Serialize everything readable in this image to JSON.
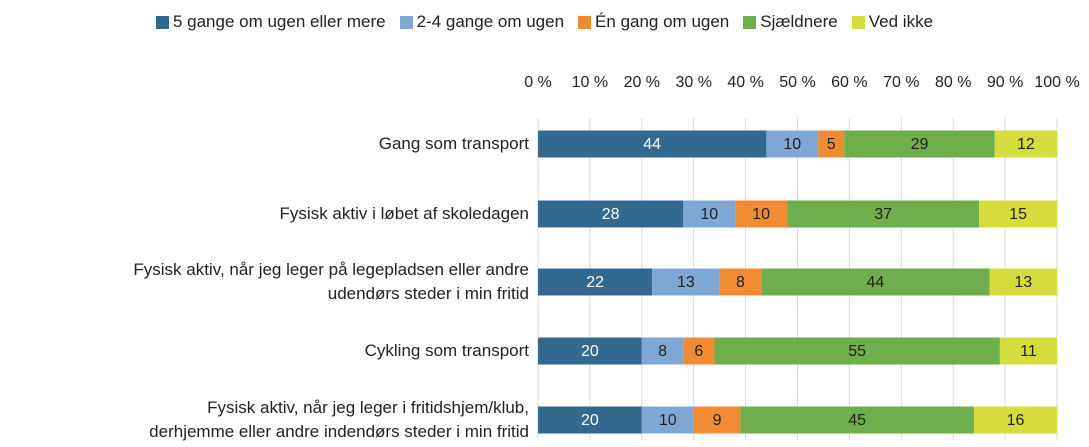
{
  "chart_data": {
    "type": "stacked_barh",
    "categories": [
      "Gang som transport",
      "Fysisk aktiv i løbet af skoledagen",
      "Fysisk aktiv, når jeg leger på legepladsen eller andre\nudendørs steder i min fritid",
      "Cykling som transport",
      "Fysisk aktiv, når jeg leger i fritidshjem/klub,\nderhjemme eller andre indendørs steder i min fritid"
    ],
    "series": [
      {
        "name": "5 gange om ugen eller mere",
        "color": "#33698f",
        "values": [
          44,
          28,
          22,
          20,
          20
        ]
      },
      {
        "name": "2-4 gange om ugen",
        "color": "#7ea8d3",
        "values": [
          10,
          10,
          13,
          8,
          10
        ]
      },
      {
        "name": "Én gang om ugen",
        "color": "#f08b33",
        "values": [
          5,
          10,
          8,
          6,
          9
        ]
      },
      {
        "name": "Sjældnere",
        "color": "#6fae4c",
        "values": [
          29,
          37,
          44,
          55,
          45
        ]
      },
      {
        "name": "Ved ikke",
        "color": "#d5dd3c",
        "values": [
          12,
          15,
          13,
          11,
          16
        ]
      }
    ],
    "xlim": [
      0,
      100
    ],
    "xticks": [
      {
        "value": 0,
        "label": "0 %"
      },
      {
        "value": 10,
        "label": "10 %"
      },
      {
        "value": 20,
        "label": "20 %"
      },
      {
        "value": 30,
        "label": "30 %"
      },
      {
        "value": 40,
        "label": "40 %"
      },
      {
        "value": 50,
        "label": "50 %"
      },
      {
        "value": 60,
        "label": "60 %"
      },
      {
        "value": 70,
        "label": "70 %"
      },
      {
        "value": 80,
        "label": "80 %"
      },
      {
        "value": 90,
        "label": "90 %"
      },
      {
        "value": 100,
        "label": "100 %"
      }
    ],
    "grid": true
  }
}
